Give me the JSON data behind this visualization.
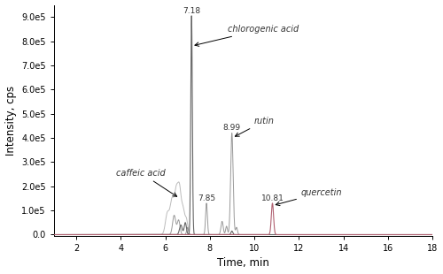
{
  "xlabel": "Time, min",
  "ylabel": "Intensity, cps",
  "xlim": [
    1,
    18
  ],
  "ylim": [
    -5000.0,
    950000.0
  ],
  "yticks": [
    0,
    100000.0,
    200000.0,
    300000.0,
    400000.0,
    500000.0,
    600000.0,
    700000.0,
    800000.0,
    900000.0
  ],
  "ytick_labels": [
    "0.0",
    "1.0e5",
    "2.0e5",
    "3.0e5",
    "4.0e5",
    "5.0e5",
    "6.0e5",
    "7.0e5",
    "8.0e5",
    "9.0e5"
  ],
  "xticks": [
    2,
    4,
    6,
    8,
    10,
    12,
    14,
    16,
    18
  ],
  "background_color": "#ffffff",
  "chloro_peak_time": 7.18,
  "chloro_peak_amp": 905000.0,
  "chloro_peak_sigma": 0.035,
  "caffeic_peak_amp": 185000.0,
  "rutin_peak_time": 8.99,
  "rutin_peak_amp": 420000.0,
  "rutin_peak_sigma": 0.055,
  "peak785_time": 7.85,
  "peak785_amp": 130000.0,
  "peak785_sigma": 0.04,
  "quercetin_time": 10.81,
  "quercetin_amp": 130000.0,
  "quercetin_sigma": 0.05,
  "color_gray_dark": "#666666",
  "color_gray_mid": "#999999",
  "color_gray_light": "#bbbbbb",
  "color_quercetin": "#b06070"
}
